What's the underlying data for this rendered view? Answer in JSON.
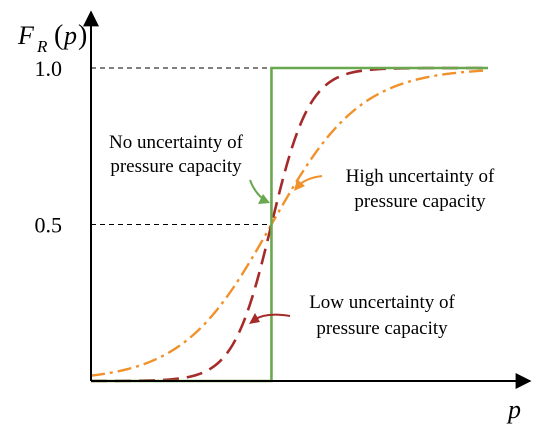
{
  "chart_data": {
    "type": "line",
    "ylabel": {
      "main": "F",
      "sub": "R",
      "open": "(",
      "var": "p",
      "close": ")"
    },
    "xlabel": "p",
    "yticks": [
      {
        "value": 1.0,
        "label": "1.0"
      },
      {
        "value": 0.5,
        "label": "0.5"
      }
    ],
    "ylim": [
      0,
      1.0
    ],
    "x_center": 0,
    "grid": false,
    "reference_lines": [
      {
        "y": 1.0,
        "style": "dashed"
      },
      {
        "y": 0.5,
        "style": "dashed"
      }
    ],
    "series": [
      {
        "key": "none",
        "style": "solid",
        "color": "#6aa84f",
        "shape": "step",
        "x_range": [
          -1,
          1.2
        ]
      },
      {
        "key": "low",
        "style": "dashed",
        "color": "#a52a2a",
        "sigma": 0.18,
        "x_range": [
          -1,
          1.2
        ]
      },
      {
        "key": "high",
        "style": "dash-dot",
        "color": "#f0912a",
        "sigma": 0.42,
        "x_range": [
          -1,
          1.2
        ]
      }
    ],
    "annotations": [
      {
        "key": "none",
        "lines": [
          "No uncertainty of",
          "pressure capacity"
        ],
        "color": "#6aa84f"
      },
      {
        "key": "high",
        "lines": [
          "High uncertainty of",
          "pressure capacity"
        ],
        "color": "#f0912a"
      },
      {
        "key": "low",
        "lines": [
          "Low uncertainty of",
          "pressure capacity"
        ],
        "color": "#a52a2a"
      }
    ]
  }
}
